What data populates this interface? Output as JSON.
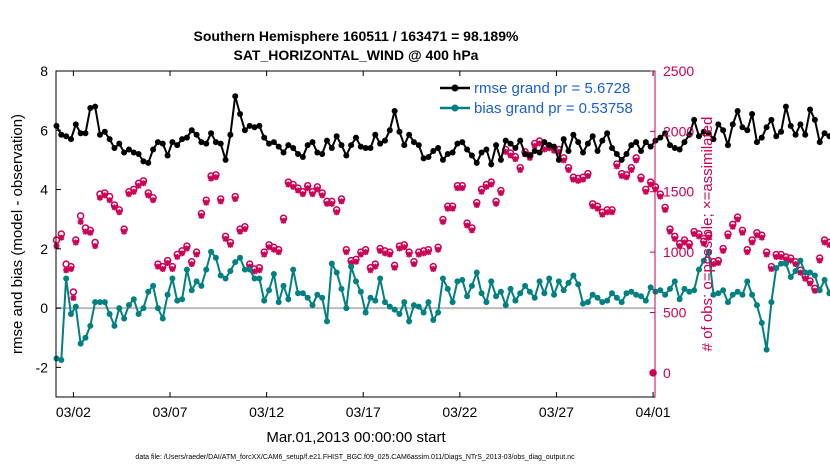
{
  "chart_data": {
    "type": "line",
    "title": "Southern Hemisphere 160511 / 163471 = 98.189%",
    "subtitle": "SAT_HORIZONTAL_WIND @ 400 hPa",
    "xlabel": "Mar.01,2013 00:00:00 start",
    "ylabel": "rmse and bias (model - observation)",
    "ylabel_right": "# of obs: o=possible; ×=assimilated",
    "footnote": "data file: /Users/raeder/DAI/ATM_forcXX/CAM6_setup/f.e21.FHIST_BGC.f09_025.CAM6assim.011/Diags_NTrS_2013-03/obs_diag_output.nc",
    "x_tick_labels": [
      "03/02",
      "03/07",
      "03/12",
      "03/17",
      "03/22",
      "03/27",
      "04/01"
    ],
    "x_tick_days": [
      1,
      6,
      11,
      16,
      21,
      26,
      31
    ],
    "xlim_days": [
      0.1,
      31.1
    ],
    "ylim": [
      -3,
      8
    ],
    "y_ticks": [
      -2,
      0,
      2,
      4,
      6,
      8
    ],
    "ylim_right": [
      -200,
      2500
    ],
    "y_ticks_right": [
      0,
      500,
      1000,
      1500,
      2000,
      2500
    ],
    "grid": false,
    "legend_position": "top-right",
    "colors": {
      "rmse": "#000000",
      "bias": "#008080",
      "obs": "#cc0055",
      "zero_line": "#bbbbbb"
    },
    "series": [
      {
        "name": "rmse grand pr = 5.6728",
        "axis": "left",
        "dt_days": 0.25,
        "start_day": 0.125,
        "values": [
          6.15,
          5.85,
          5.8,
          5.7,
          6.2,
          5.9,
          5.9,
          6.75,
          6.8,
          5.85,
          5.95,
          5.7,
          5.4,
          5.55,
          5.25,
          5.35,
          5.25,
          5.2,
          4.95,
          4.9,
          5.35,
          5.6,
          5.55,
          5.15,
          5.6,
          5.5,
          5.7,
          5.75,
          6.0,
          5.85,
          5.6,
          5.55,
          5.9,
          5.6,
          5.55,
          5.0,
          5.85,
          7.15,
          6.55,
          6.0,
          6.15,
          6.1,
          6.15,
          5.75,
          5.55,
          5.6,
          5.45,
          5.25,
          5.5,
          5.4,
          5.2,
          5.1,
          5.5,
          5.6,
          5.25,
          5.2,
          5.65,
          5.4,
          5.8,
          5.5,
          5.15,
          5.5,
          5.75,
          5.45,
          5.4,
          5.4,
          5.85,
          5.55,
          5.65,
          6.0,
          6.65,
          5.95,
          5.5,
          5.85,
          5.6,
          5.5,
          5.05,
          5.1,
          5.3,
          5.4,
          5.0,
          5.2,
          5.25,
          5.55,
          5.6,
          5.35,
          5.15,
          4.9,
          5.25,
          5.35,
          4.85,
          5.5,
          5.0,
          5.65,
          5.55,
          5.4,
          5.65,
          5.2,
          5.15,
          5.3,
          5.25,
          5.6,
          5.5,
          5.45,
          5.0,
          5.7,
          5.3,
          5.85,
          5.6,
          5.25,
          5.55,
          5.8,
          5.3,
          5.65,
          5.9,
          5.4,
          5.2,
          5.0,
          5.2,
          5.5,
          5.6,
          5.3,
          5.6,
          5.45,
          5.65,
          5.75,
          5.9,
          5.5,
          5.4,
          5.35,
          5.6,
          5.85,
          6.35,
          5.8,
          5.95,
          5.9,
          5.7,
          6.2,
          6.0,
          5.5,
          6.2,
          6.65,
          6.1,
          6.0,
          6.55,
          5.6,
          5.75,
          6.1,
          6.35,
          5.8,
          5.95,
          6.8,
          6.15,
          5.85,
          6.2,
          5.85,
          6.7,
          6.35,
          5.6,
          5.9,
          5.8,
          5.55,
          6.2,
          5.75,
          5.95,
          5.7,
          6.1,
          5.5,
          5.45,
          5.65,
          5.4
        ]
      },
      {
        "name": "bias grand pr = 0.53758",
        "axis": "left",
        "dt_days": 0.25,
        "start_day": 0.125,
        "values": [
          -1.7,
          -1.75,
          1.0,
          -0.2,
          0.05,
          -1.2,
          -1.0,
          -0.6,
          0.2,
          0.2,
          0.2,
          -0.2,
          -0.6,
          0.0,
          -0.35,
          0.1,
          0.3,
          -0.2,
          0.0,
          0.55,
          0.75,
          0.0,
          -0.35,
          0.45,
          1.0,
          0.25,
          0.3,
          1.3,
          0.6,
          0.9,
          0.75,
          1.3,
          1.9,
          1.7,
          1.1,
          1.0,
          1.25,
          1.55,
          1.7,
          1.3,
          1.3,
          1.0,
          1.0,
          0.25,
          0.6,
          1.15,
          0.2,
          0.75,
          0.3,
          1.3,
          0.5,
          0.5,
          0.35,
          0.1,
          0.45,
          0.35,
          -0.45,
          1.5,
          1.2,
          0.65,
          0.0,
          1.4,
          0.9,
          0.55,
          -0.15,
          0.35,
          0.25,
          1.0,
          0.2,
          0.05,
          -0.05,
          -0.2,
          0.2,
          -0.45,
          0.1,
          0.05,
          -0.15,
          0.2,
          -0.4,
          -0.15,
          1.0,
          0.65,
          0.2,
          0.9,
          0.95,
          0.4,
          0.75,
          1.2,
          0.5,
          0.2,
          0.9,
          0.4,
          0.55,
          0.1,
          0.65,
          0.25,
          0.5,
          0.75,
          0.55,
          0.35,
          0.9,
          0.5,
          1.0,
          0.45,
          0.9,
          0.6,
          0.85,
          1.1,
          0.8,
          0.15,
          0.2,
          0.45,
          0.35,
          0.2,
          0.25,
          0.5,
          0.35,
          0.2,
          0.5,
          0.55,
          0.45,
          0.4,
          0.25,
          0.7,
          0.55,
          0.6,
          0.45,
          0.65,
          0.9,
          0.3,
          0.65,
          0.55,
          0.6,
          1.3,
          1.6,
          1.9,
          0.45,
          0.5,
          0.6,
          0.2,
          0.45,
          0.55,
          0.45,
          0.9,
          0.45,
          0.1,
          -0.5,
          -1.4,
          0.2,
          1.35,
          1.5,
          1.5,
          1.05,
          1.25,
          1.6,
          1.2,
          1.2,
          1.1,
          0.6,
          0.95,
          0.5,
          1.0,
          0.85,
          1.2,
          0.8,
          0.75,
          0.7,
          1.25,
          1.0,
          1.0,
          0.85,
          0.8,
          0.6,
          0.5,
          0.85,
          0.95,
          0.45
        ]
      },
      {
        "name": "possible",
        "axis": "right",
        "marker": "o",
        "dt_days": 0.25,
        "start_day": 0.125,
        "values": [
          1100,
          1150,
          900,
          880,
          1100,
          1300,
          1200,
          1180,
          1080,
          1480,
          1490,
          1460,
          1390,
          1350,
          1190,
          1500,
          1520,
          1570,
          1590,
          1490,
          1450,
          900,
          880,
          930,
          880,
          980,
          1010,
          1050,
          920,
          1000,
          1320,
          1430,
          1630,
          1640,
          1440,
          1130,
          1080,
          1460,
          1190,
          1210,
          900,
          860,
          870,
          1000,
          1060,
          1040,
          1020,
          1280,
          1580,
          1560,
          1530,
          1500,
          1550,
          1500,
          1540,
          1490,
          1420,
          1420,
          1350,
          1440,
          1020,
          930,
          940,
          1000,
          1020,
          870,
          900,
          1030,
          1010,
          1000,
          890,
          1050,
          1060,
          1000,
          920,
          1000,
          1010,
          1020,
          880,
          1040,
          1270,
          1380,
          1380,
          1550,
          1550,
          1240,
          1200,
          1410,
          1520,
          1560,
          1580,
          1420,
          1510,
          1850,
          1820,
          1790,
          1700,
          1830,
          1800,
          1900,
          1920,
          1870,
          1880,
          1860,
          1850,
          1780,
          1700,
          1620,
          1610,
          1620,
          1650,
          1400,
          1380,
          1330,
          1350,
          1350,
          1730,
          1650,
          1640,
          1700,
          1780,
          1620,
          1520,
          1580,
          1540,
          1480,
          1370,
          1190,
          1130,
          1070,
          1100,
          1070,
          1170,
          1150,
          1090,
          1140,
          920,
          930,
          1030,
          1150,
          1230,
          1290,
          1180,
          1020,
          1100,
          1160,
          1140,
          1000,
          880,
          980,
          980,
          960,
          950,
          920,
          850,
          800,
          760,
          700,
          950,
          1100,
          1080,
          1060,
          1010,
          1030,
          970,
          910,
          920,
          1030,
          1180,
          1300,
          1280,
          1350,
          1980,
          1900,
          1860,
          1850,
          1880
        ]
      },
      {
        "name": "assimilated",
        "axis": "right",
        "marker": "x",
        "dt_days": 0.25,
        "start_day": 0.125,
        "values": [
          1050,
          1120,
          850,
          860,
          1080,
          1250,
          1170,
          1160,
          1050,
          1450,
          1470,
          1430,
          1370,
          1330,
          1170,
          1480,
          1500,
          1550,
          1570,
          1470,
          1430,
          880,
          860,
          910,
          860,
          960,
          990,
          1030,
          900,
          980,
          1300,
          1410,
          1610,
          1620,
          1420,
          1110,
          1060,
          1440,
          1170,
          1190,
          880,
          840,
          850,
          980,
          1040,
          1020,
          1000,
          1260,
          1560,
          1540,
          1510,
          1480,
          1530,
          1480,
          1520,
          1470,
          1400,
          1400,
          1330,
          1420,
          1000,
          910,
          920,
          980,
          1000,
          850,
          880,
          1010,
          990,
          980,
          870,
          1030,
          1040,
          980,
          900,
          980,
          990,
          1000,
          860,
          1020,
          1250,
          1360,
          1360,
          1530,
          1530,
          1220,
          1180,
          1390,
          1500,
          1540,
          1560,
          1400,
          1490,
          1830,
          1800,
          1770,
          1680,
          1810,
          1780,
          1880,
          1900,
          1850,
          1860,
          1840,
          1830,
          1760,
          1680,
          1600,
          1590,
          1600,
          1630,
          1380,
          1360,
          1310,
          1330,
          1330,
          1710,
          1630,
          1620,
          1680,
          1760,
          1600,
          1500,
          1560,
          1520,
          1460,
          1350,
          1170,
          1110,
          1050,
          1080,
          1050,
          1150,
          1130,
          1070,
          1120,
          900,
          910,
          1010,
          1130,
          1210,
          1270,
          1160,
          1000,
          1080,
          1140,
          1120,
          980,
          860,
          960,
          960,
          940,
          930,
          900,
          830,
          780,
          740,
          680,
          930,
          1080,
          1060,
          1040,
          990,
          1010,
          950,
          890,
          900,
          1010,
          1160,
          1280,
          1260,
          1330,
          1960,
          1880,
          1840,
          1830,
          1860
        ]
      }
    ],
    "extra_points": [
      {
        "series": "possible",
        "day": 1.0,
        "value": 670
      },
      {
        "series": "assimilated",
        "day": 1.0,
        "value": 620
      },
      {
        "series": "possible",
        "day": 31.0,
        "value": 0
      },
      {
        "series": "assimilated",
        "day": 31.0,
        "value": 0
      }
    ]
  }
}
